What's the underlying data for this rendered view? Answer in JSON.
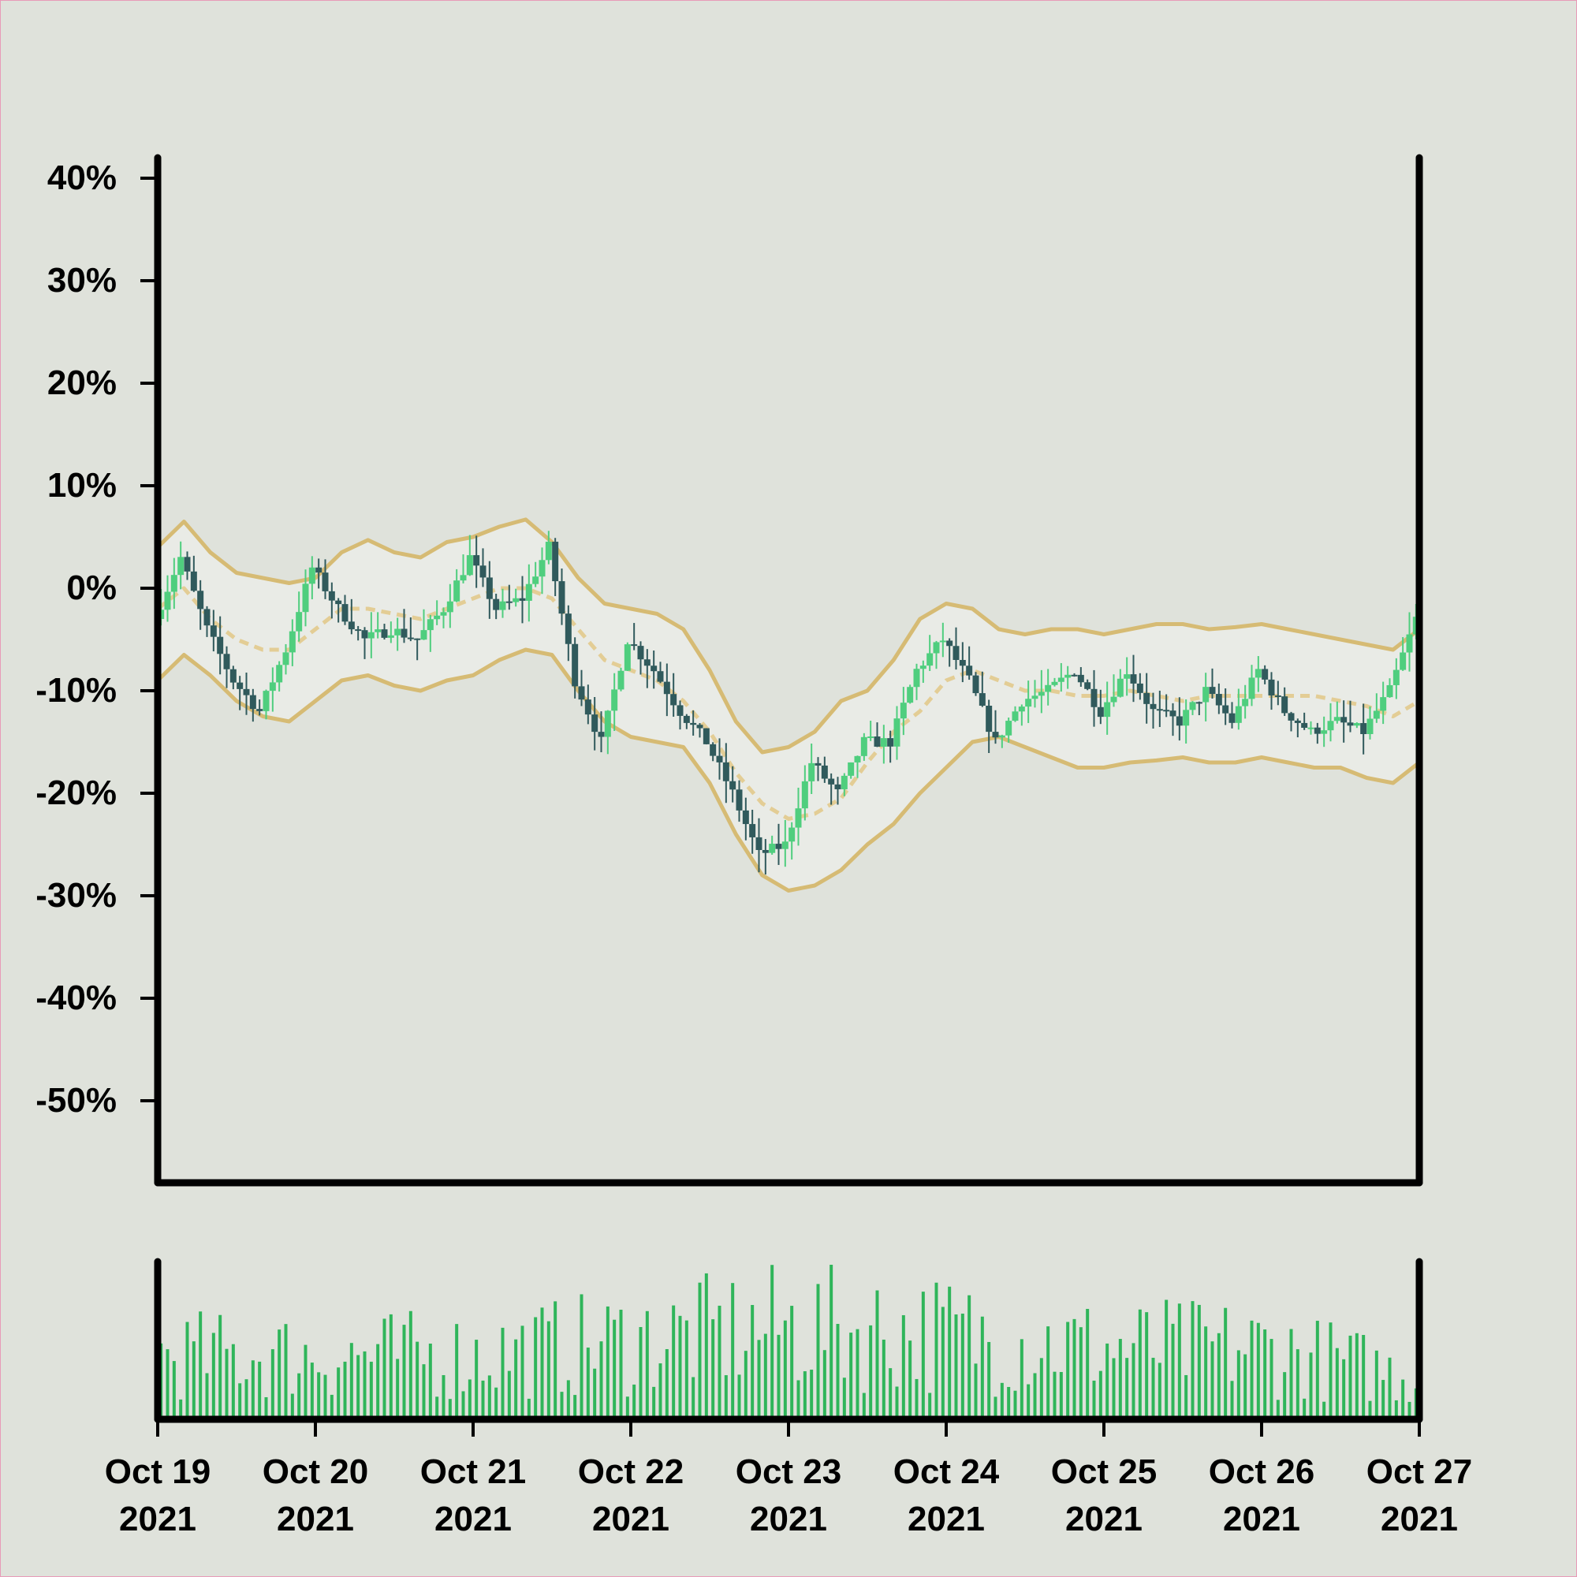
{
  "colors": {
    "background": "#dfe2db",
    "band_fill": "#e9ebe6",
    "band_line": "#d6bb74",
    "ma_line": "#e3cd95",
    "up_candle": "#4fce7e",
    "down_candle": "#305a5c",
    "volume_bar": "#2fb55a",
    "axis": "#000000"
  },
  "chart_data": {
    "type": "candlestick",
    "title": "",
    "xlabel": "",
    "ylabel": "",
    "ylim": [
      -58,
      42
    ],
    "ytick_values": [
      40,
      30,
      20,
      10,
      0,
      -10,
      -20,
      -30,
      -40,
      -50
    ],
    "ytick_labels": [
      "40%",
      "30%",
      "20%",
      "10%",
      "0%",
      "-10%",
      "-20%",
      "-30%",
      "-40%",
      "-50%"
    ],
    "xlim": [
      "2021-10-19T00:00",
      "2021-10-27T00:00"
    ],
    "xtick_values": [
      "2021-10-19",
      "2021-10-20",
      "2021-10-21",
      "2021-10-22",
      "2021-10-23",
      "2021-10-24",
      "2021-10-25",
      "2021-10-26",
      "2021-10-27"
    ],
    "xtick_labels": [
      [
        "Oct 19",
        "2021"
      ],
      [
        "Oct 20",
        "2021"
      ],
      [
        "Oct 21",
        "2021"
      ],
      [
        "Oct 22",
        "2021"
      ],
      [
        "Oct 23",
        "2021"
      ],
      [
        "Oct 24",
        "2021"
      ],
      [
        "Oct 25",
        "2021"
      ],
      [
        "Oct 26",
        "2021"
      ],
      [
        "Oct 27",
        "2021"
      ]
    ],
    "grid": false,
    "price_path": {
      "x": [
        "2021-10-19T00:00",
        "2021-10-19T04:00",
        "2021-10-19T08:00",
        "2021-10-19T12:00",
        "2021-10-19T16:00",
        "2021-10-19T20:00",
        "2021-10-20T00:00",
        "2021-10-20T04:00",
        "2021-10-20T08:00",
        "2021-10-20T12:00",
        "2021-10-20T16:00",
        "2021-10-20T20:00",
        "2021-10-21T00:00",
        "2021-10-21T04:00",
        "2021-10-21T08:00",
        "2021-10-21T12:00",
        "2021-10-21T16:00",
        "2021-10-21T20:00",
        "2021-10-22T00:00",
        "2021-10-22T04:00",
        "2021-10-22T08:00",
        "2021-10-22T12:00",
        "2021-10-22T16:00",
        "2021-10-22T20:00",
        "2021-10-23T00:00",
        "2021-10-23T04:00",
        "2021-10-23T08:00",
        "2021-10-23T12:00",
        "2021-10-23T16:00",
        "2021-10-23T20:00",
        "2021-10-24T00:00",
        "2021-10-24T04:00",
        "2021-10-24T08:00",
        "2021-10-24T12:00",
        "2021-10-24T16:00",
        "2021-10-24T20:00",
        "2021-10-25T00:00",
        "2021-10-25T04:00",
        "2021-10-25T08:00",
        "2021-10-25T12:00",
        "2021-10-25T16:00",
        "2021-10-25T20:00",
        "2021-10-26T00:00",
        "2021-10-26T04:00",
        "2021-10-26T08:00",
        "2021-10-26T12:00",
        "2021-10-26T16:00",
        "2021-10-26T20:00",
        "2021-10-27T00:00"
      ],
      "y": [
        -3,
        3,
        -4,
        -9,
        -12,
        -6,
        2,
        -2,
        -5,
        -4,
        -5,
        -2,
        3,
        -2,
        -1,
        4,
        -9,
        -15,
        -5,
        -8,
        -12,
        -15,
        -20,
        -26,
        -25,
        -17,
        -20,
        -15,
        -15,
        -8,
        -5,
        -9,
        -15,
        -11,
        -10,
        -8,
        -12,
        -8,
        -12,
        -13,
        -10,
        -13,
        -8,
        -12,
        -14,
        -13,
        -14,
        -10,
        -3
      ]
    },
    "bollinger": {
      "x": [
        "2021-10-19T00:00",
        "2021-10-19T04:00",
        "2021-10-19T08:00",
        "2021-10-19T12:00",
        "2021-10-19T16:00",
        "2021-10-19T20:00",
        "2021-10-20T00:00",
        "2021-10-20T04:00",
        "2021-10-20T08:00",
        "2021-10-20T12:00",
        "2021-10-20T16:00",
        "2021-10-20T20:00",
        "2021-10-21T00:00",
        "2021-10-21T04:00",
        "2021-10-21T08:00",
        "2021-10-21T12:00",
        "2021-10-21T16:00",
        "2021-10-21T20:00",
        "2021-10-22T00:00",
        "2021-10-22T04:00",
        "2021-10-22T08:00",
        "2021-10-22T12:00",
        "2021-10-22T16:00",
        "2021-10-22T20:00",
        "2021-10-23T00:00",
        "2021-10-23T04:00",
        "2021-10-23T08:00",
        "2021-10-23T12:00",
        "2021-10-23T16:00",
        "2021-10-23T20:00",
        "2021-10-24T00:00",
        "2021-10-24T04:00",
        "2021-10-24T08:00",
        "2021-10-24T12:00",
        "2021-10-24T16:00",
        "2021-10-24T20:00",
        "2021-10-25T00:00",
        "2021-10-25T04:00",
        "2021-10-25T08:00",
        "2021-10-25T12:00",
        "2021-10-25T16:00",
        "2021-10-25T20:00",
        "2021-10-26T00:00",
        "2021-10-26T04:00",
        "2021-10-26T08:00",
        "2021-10-26T12:00",
        "2021-10-26T16:00",
        "2021-10-26T20:00",
        "2021-10-27T00:00"
      ],
      "upper": [
        4,
        6.5,
        3.5,
        1.5,
        1,
        0.5,
        1,
        3.5,
        4.7,
        3.5,
        3,
        4.5,
        5,
        6,
        6.7,
        4.5,
        1,
        -1.5,
        -2,
        -2.5,
        -4,
        -8,
        -13,
        -16,
        -15.5,
        -14,
        -11,
        -10,
        -7,
        -3,
        -1.5,
        -2,
        -4,
        -4.5,
        -4,
        -4,
        -4.5,
        -4,
        -3.5,
        -3.5,
        -4,
        -3.8,
        -3.5,
        -4,
        -4.5,
        -5,
        -5.5,
        -6,
        -4
      ],
      "middle": [
        -2,
        0,
        -3,
        -5,
        -6,
        -6,
        -4,
        -2,
        -2,
        -2.5,
        -3,
        -2,
        -1,
        0,
        0,
        -1,
        -4,
        -7,
        -8,
        -9,
        -11,
        -14,
        -18,
        -21,
        -22.5,
        -22,
        -20.5,
        -17,
        -14,
        -12,
        -9,
        -8,
        -9,
        -10,
        -10,
        -10.5,
        -10.5,
        -10,
        -10.5,
        -11,
        -10.5,
        -10.5,
        -10.5,
        -10.5,
        -10.5,
        -11,
        -11.5,
        -12.5,
        -11
      ],
      "lower": [
        -9,
        -6.5,
        -8.5,
        -11,
        -12.5,
        -13,
        -11,
        -9,
        -8.5,
        -9.5,
        -10,
        -9,
        -8.5,
        -7,
        -6,
        -6.5,
        -10,
        -13,
        -14.5,
        -15,
        -15.5,
        -19,
        -24,
        -28,
        -29.5,
        -29,
        -27.5,
        -25,
        -23,
        -20,
        -17.5,
        -15,
        -14.5,
        -15.5,
        -16.5,
        -17.5,
        -17.5,
        -17,
        -16.8,
        -16.5,
        -17,
        -17,
        -16.5,
        -17,
        -17.5,
        -17.5,
        -18.5,
        -19,
        -17
      ]
    },
    "volume_level": {
      "x": [
        "2021-10-19",
        "2021-10-20",
        "2021-10-21",
        "2021-10-22",
        "2021-10-23",
        "2021-10-24",
        "2021-10-25",
        "2021-10-26",
        "2021-10-27"
      ],
      "relative": [
        0.45,
        0.45,
        0.45,
        0.55,
        0.65,
        0.6,
        0.5,
        0.5,
        0.3
      ]
    }
  }
}
